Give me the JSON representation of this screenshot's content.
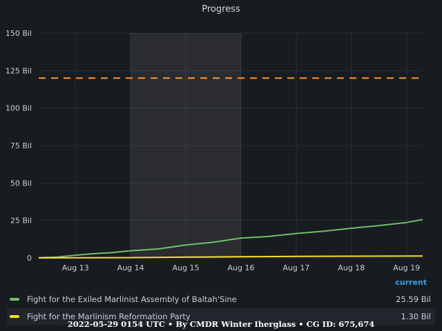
{
  "chart_data": {
    "type": "line",
    "title": "Progress",
    "xlabel": "",
    "ylabel": "",
    "x_ticks": [
      "Aug 13",
      "Aug 14",
      "Aug 15",
      "Aug 16",
      "Aug 17",
      "Aug 18",
      "Aug 19"
    ],
    "y_ticks": [
      "0",
      "25 Bil",
      "50 Bil",
      "75 Bil",
      "100 Bil",
      "125 Bil",
      "150 Bil"
    ],
    "xlim": [
      "2022-08-12T08:00",
      "2022-08-19T07:00"
    ],
    "ylim": [
      0,
      150
    ],
    "y_unit": "Bil",
    "grid": true,
    "legend_position": "bottom",
    "legend_column_header": "current",
    "highlight_region": [
      "2022-08-14T00:00",
      "2022-08-16T00:00"
    ],
    "threshold": {
      "value": 120,
      "color": "#ff9830",
      "style": "dashed"
    },
    "series": [
      {
        "name": "Fight for the Exiled Marlinist Assembly of Baltah'Sine",
        "color": "#73bf69",
        "current": "25.59 Bil",
        "points": [
          [
            "2022-08-12T08:00",
            0.2
          ],
          [
            "2022-08-12T16:00",
            0.6
          ],
          [
            "2022-08-13T00:00",
            1.8
          ],
          [
            "2022-08-13T08:00",
            2.8
          ],
          [
            "2022-08-13T16:00",
            3.6
          ],
          [
            "2022-08-14T00:00",
            4.8
          ],
          [
            "2022-08-14T12:00",
            6.0
          ],
          [
            "2022-08-15T00:00",
            8.6
          ],
          [
            "2022-08-15T12:00",
            10.5
          ],
          [
            "2022-08-16T00:00",
            13.2
          ],
          [
            "2022-08-16T12:00",
            14.3
          ],
          [
            "2022-08-17T00:00",
            16.3
          ],
          [
            "2022-08-17T12:00",
            17.8
          ],
          [
            "2022-08-18T00:00",
            19.8
          ],
          [
            "2022-08-18T12:00",
            21.6
          ],
          [
            "2022-08-19T00:00",
            23.6
          ],
          [
            "2022-08-19T07:00",
            25.59
          ]
        ]
      },
      {
        "name": "Fight for the Marlinism Reformation Party",
        "color": "#fade2a",
        "current": "1.30 Bil",
        "points": [
          [
            "2022-08-12T08:00",
            0.0
          ],
          [
            "2022-08-14T00:00",
            0.2
          ],
          [
            "2022-08-15T00:00",
            0.5
          ],
          [
            "2022-08-16T00:00",
            0.8
          ],
          [
            "2022-08-17T00:00",
            1.0
          ],
          [
            "2022-08-18T00:00",
            1.15
          ],
          [
            "2022-08-19T07:00",
            1.3
          ]
        ]
      }
    ]
  },
  "footer": "2022-05-29 0154 UTC • By CMDR Winter Iherglass • CG ID: 675,674"
}
